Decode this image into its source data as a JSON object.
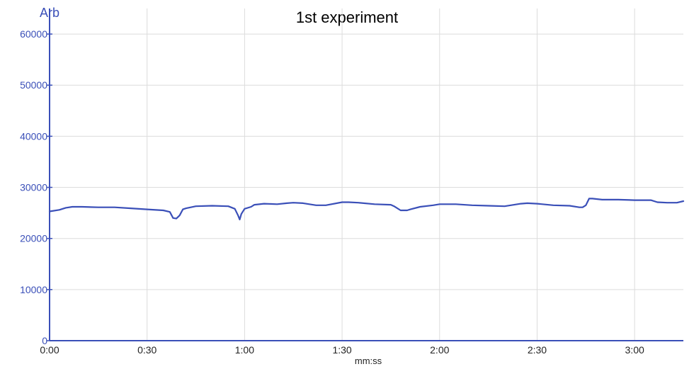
{
  "chart_data": {
    "type": "line",
    "title": "1st experiment",
    "xlabel": "mm:ss",
    "ylabel": "Arb",
    "xlim": [
      0,
      195
    ],
    "ylim": [
      0,
      65000
    ],
    "x_ticks": [
      {
        "value": 0,
        "label": "0:00"
      },
      {
        "value": 30,
        "label": "0:30"
      },
      {
        "value": 60,
        "label": "1:00"
      },
      {
        "value": 90,
        "label": "1:30"
      },
      {
        "value": 120,
        "label": "2:00"
      },
      {
        "value": 150,
        "label": "2:30"
      },
      {
        "value": 180,
        "label": "3:00"
      }
    ],
    "y_ticks": [
      {
        "value": 0,
        "label": "0"
      },
      {
        "value": 10000,
        "label": "10000"
      },
      {
        "value": 20000,
        "label": "20000"
      },
      {
        "value": 30000,
        "label": "30000"
      },
      {
        "value": 40000,
        "label": "40000"
      },
      {
        "value": 50000,
        "label": "50000"
      },
      {
        "value": 60000,
        "label": "60000"
      }
    ],
    "grid": true,
    "colors": {
      "series": "#3a4fb8",
      "axis": "#3a4fb8",
      "grid": "#dcdcdc"
    },
    "series": [
      {
        "x": [
          0,
          3,
          5,
          7,
          10,
          15,
          20,
          25,
          30,
          35,
          37,
          38,
          39,
          40,
          41,
          42,
          45,
          50,
          55,
          57,
          58,
          58.5,
          59,
          60,
          62,
          63,
          66,
          70,
          73,
          75,
          78,
          82,
          85,
          90,
          92,
          95,
          100,
          105,
          106,
          108,
          110,
          111,
          114,
          118,
          120,
          125,
          130,
          135,
          140,
          145,
          147,
          150,
          155,
          160,
          163,
          164,
          165,
          166,
          167,
          170,
          175,
          180,
          185,
          187,
          190,
          193,
          195
        ],
        "y": [
          25300,
          25600,
          26000,
          26200,
          26200,
          26100,
          26100,
          25900,
          25700,
          25500,
          25200,
          24000,
          23900,
          24500,
          25700,
          25900,
          26300,
          26400,
          26300,
          25800,
          24500,
          23700,
          24800,
          25800,
          26200,
          26600,
          26800,
          26700,
          26900,
          27000,
          26900,
          26500,
          26500,
          27100,
          27100,
          27000,
          26700,
          26600,
          26300,
          25500,
          25500,
          25700,
          26200,
          26500,
          26700,
          26700,
          26500,
          26400,
          26300,
          26800,
          26900,
          26800,
          26500,
          26400,
          26100,
          26100,
          26500,
          27800,
          27800,
          27600,
          27600,
          27500,
          27500,
          27100,
          27000,
          27000,
          27300
        ]
      }
    ]
  }
}
